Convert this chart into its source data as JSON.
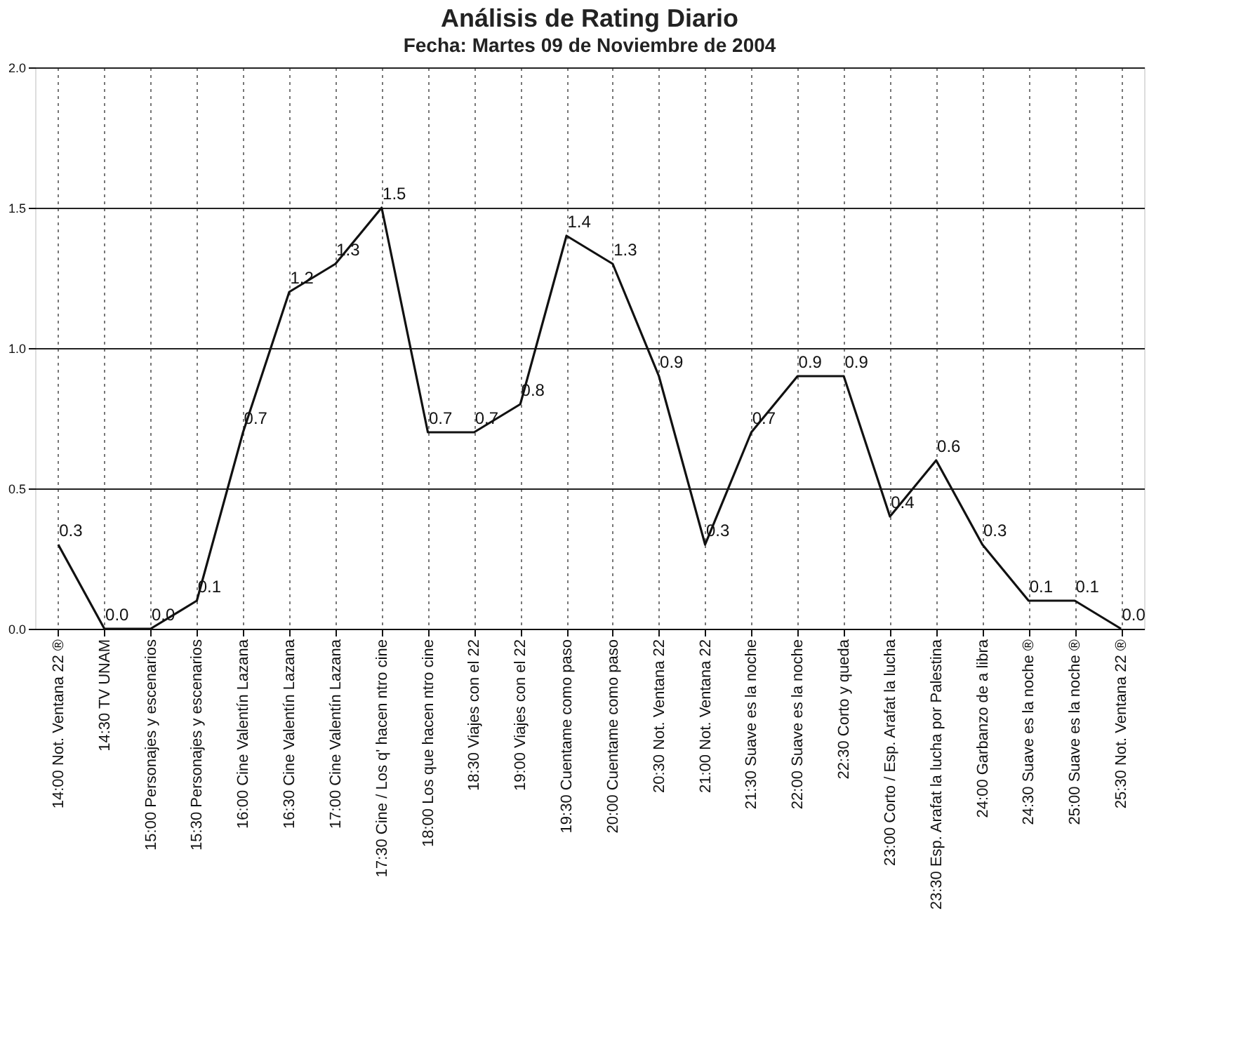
{
  "chart_data": {
    "type": "line",
    "title": "Análisis de Rating Diario",
    "subtitle": "Fecha: Martes 09 de Noviembre de 2004",
    "categories": [
      "14:00 Not. Ventana 22 ®",
      "14:30 TV UNAM",
      "15:00 Personajes y escenarios",
      "15:30 Personajes y escenarios",
      "16:00 Cine Valentín Lazana",
      "16:30 Cine Valentín Lazana",
      "17:00 Cine Valentín Lazana",
      "17:30 Cine / Los q' hacen ntro cine",
      "18:00 Los que hacen ntro cine",
      "18:30 Viajes con el 22",
      "19:00 Viajes con el 22",
      "19:30 Cuentame como paso",
      "20:00 Cuentame como paso",
      "20:30 Not. Ventana 22",
      "21:00 Not. Ventana 22",
      "21:30 Suave es la noche",
      "22:00 Suave es la noche",
      "22:30 Corto y queda",
      "23:00 Corto / Esp. Arafat la lucha",
      "23:30 Esp. Arafat la lucha por Palestina",
      "24:00 Garbanzo de a libra",
      "24:30 Suave es la noche ®",
      "25:00 Suave es la noche ®",
      "25:30 Not. Ventana 22 ®"
    ],
    "series": [
      {
        "color": "#111111",
        "values": [
          0.3,
          0.0,
          0.0,
          0.1,
          0.7,
          1.2,
          1.3,
          1.5,
          0.7,
          0.7,
          0.8,
          1.4,
          1.3,
          0.9,
          0.3,
          0.7,
          0.9,
          0.9,
          0.4,
          0.6,
          0.3,
          0.1,
          0.1,
          0.0
        ]
      }
    ],
    "ylim": [
      0,
      2
    ],
    "yticks": [
      {
        "value": 0,
        "label": "0.0"
      },
      0.5,
      {
        "value": 1,
        "label": "1.0"
      },
      1.5,
      {
        "value": 2,
        "label": "2.0"
      }
    ],
    "value_labels": [
      "0.3",
      "0.0",
      "0.0",
      "0.1",
      "0.7",
      "1.2",
      "1.3",
      "1.5",
      "0.7",
      "0.7",
      "0.8",
      "1.4",
      "1.3",
      "0.9",
      "0.3",
      "0.7",
      "0.9",
      "0.9",
      "0.4",
      "0.6",
      "0.3",
      "0.1",
      "0.1",
      "0.0"
    ],
    "grid": true,
    "legend": false,
    "marker": "none",
    "line_style": "solid"
  }
}
